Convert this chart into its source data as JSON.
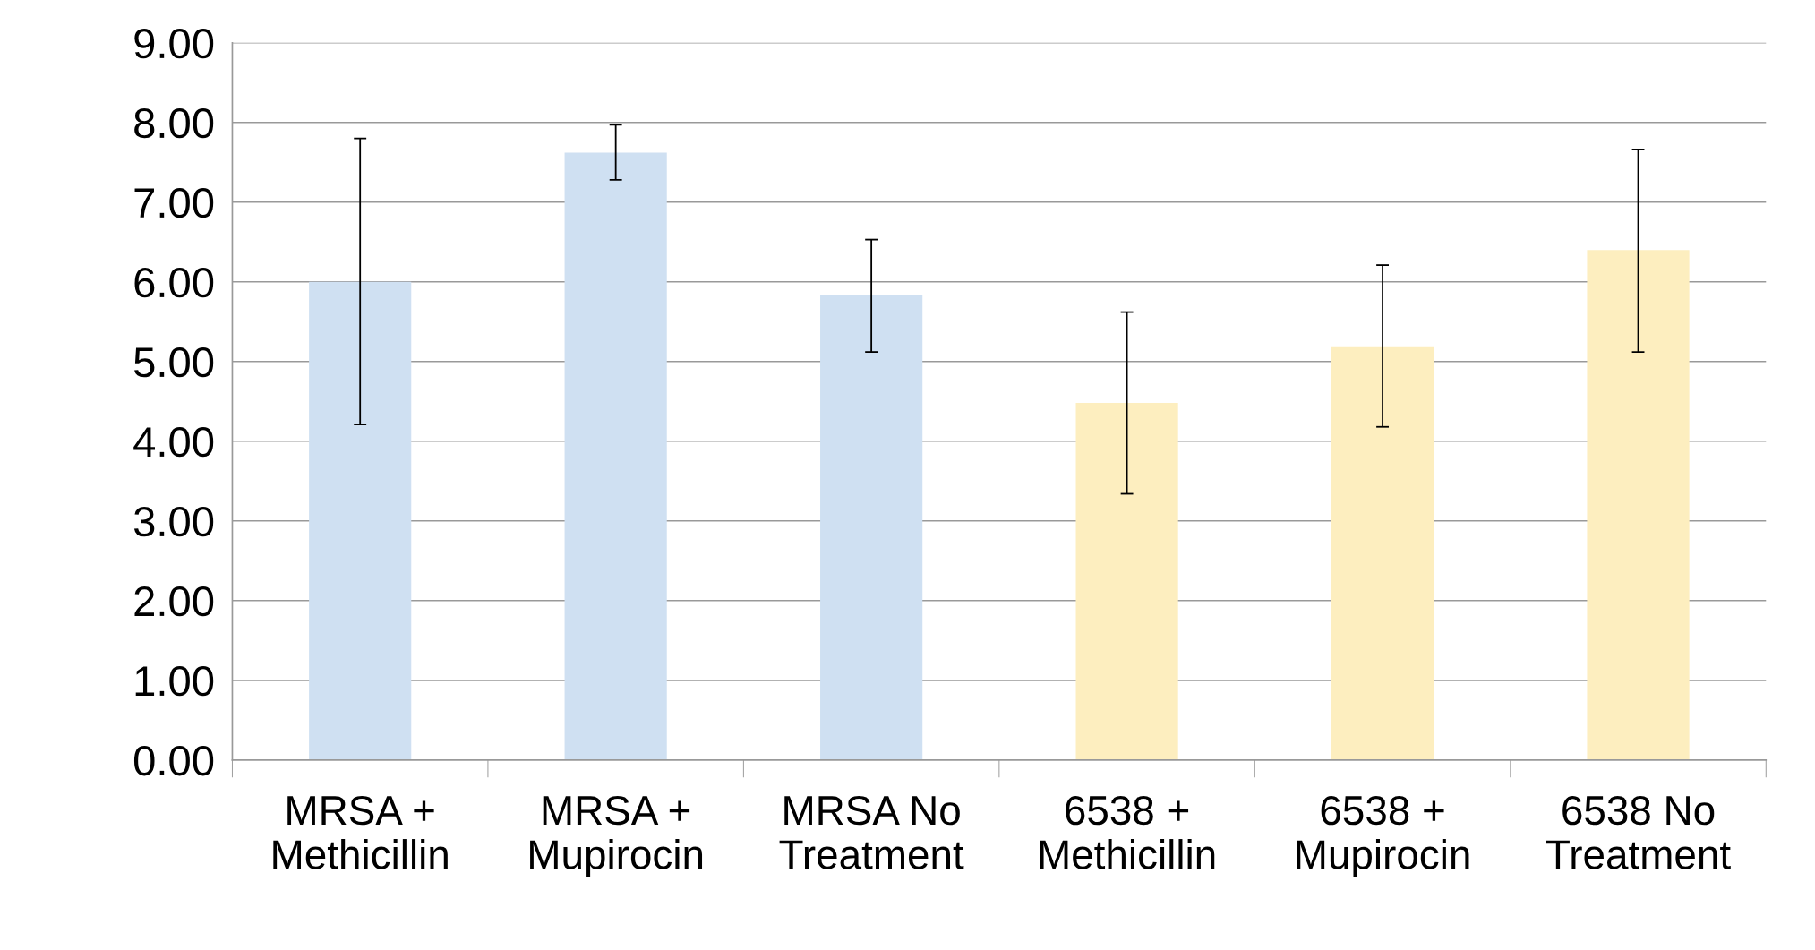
{
  "chart_data": {
    "type": "bar",
    "categories": [
      "MRSA +\nMethicillin",
      "MRSA +\nMupirocin",
      "MRSA No\nTreatment",
      "6538 +\nMethicillin",
      "6538 +\nMupirocin",
      "6538 No\nTreatment"
    ],
    "values": [
      6.0,
      7.62,
      5.83,
      4.48,
      5.19,
      6.4
    ],
    "colors": [
      "#cfe0f2",
      "#cfe0f2",
      "#cfe0f2",
      "#fdeebf",
      "#fdeebf",
      "#fdeebf"
    ],
    "errors": [
      [
        4.21,
        7.8
      ],
      [
        7.28,
        7.97
      ],
      [
        5.12,
        6.53
      ],
      [
        3.34,
        5.62
      ],
      [
        4.18,
        6.21
      ],
      [
        5.12,
        7.66
      ]
    ],
    "ylim": [
      0,
      9
    ],
    "yticks": [
      {
        "value": 0,
        "label": "0.00"
      },
      {
        "value": 1,
        "label": "1.00"
      },
      {
        "value": 2,
        "label": "2.00"
      },
      {
        "value": 3,
        "label": "3.00"
      },
      {
        "value": 4,
        "label": "4.00"
      },
      {
        "value": 5,
        "label": "5.00"
      },
      {
        "value": 6,
        "label": "6.00"
      },
      {
        "value": 7,
        "label": "7.00"
      },
      {
        "value": 8,
        "label": "8.00"
      },
      {
        "value": 9,
        "label": "9.00"
      }
    ],
    "grid": "y"
  }
}
